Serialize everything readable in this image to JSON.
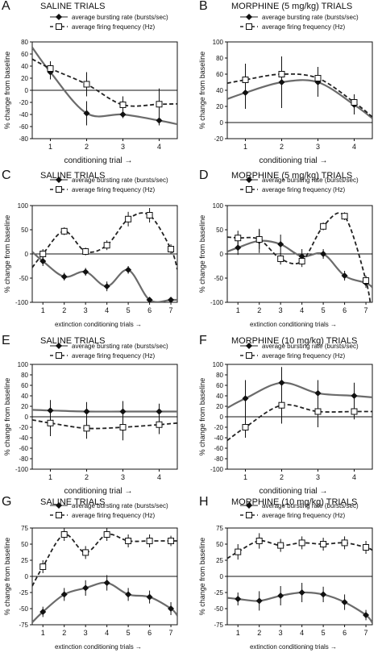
{
  "colors": {
    "bursting": "#6b6b6b",
    "firing": "#222222",
    "axis": "#111111"
  },
  "chart_data": [
    {
      "letter": "A",
      "title": "SALINE TRIALS",
      "type": "line",
      "xlabel": "conditioning trial",
      "ylabel": "% change from baseline",
      "x_ticks": [
        1,
        2,
        3,
        4
      ],
      "xlim": [
        0.5,
        4.5
      ],
      "y_ticks": [
        80,
        60,
        40,
        20,
        0,
        -20,
        -40,
        -60,
        -80
      ],
      "ylim": [
        -80,
        80
      ],
      "legend": [
        "average bursting rate (bursts/sec)",
        "average firing frequency (Hz)"
      ],
      "series": [
        {
          "name": "average bursting rate (bursts/sec)",
          "x": [
            1,
            2,
            3,
            4
          ],
          "values": [
            30,
            -38,
            -40,
            -50
          ],
          "err": [
            12,
            20,
            6,
            8
          ]
        },
        {
          "name": "average firing frequency (Hz)",
          "x": [
            1,
            2,
            3,
            4
          ],
          "values": [
            36,
            10,
            -24,
            -23
          ],
          "err": [
            12,
            20,
            14,
            26
          ]
        }
      ]
    },
    {
      "letter": "B",
      "title": "MORPHINE (5 mg/kg) TRIALS",
      "type": "line",
      "xlabel": "conditioning trial",
      "ylabel": "% change from baseline",
      "x_ticks": [
        1,
        2,
        3,
        4
      ],
      "xlim": [
        0.5,
        4.5
      ],
      "y_ticks": [
        100,
        80,
        60,
        40,
        20,
        0,
        -20
      ],
      "ylim": [
        -20,
        100
      ],
      "legend": [
        "average bursting rate (bursts/sec)",
        "average firing frequency (Hz)"
      ],
      "series": [
        {
          "name": "average bursting rate (bursts/sec)",
          "x": [
            1,
            2,
            3,
            4
          ],
          "values": [
            37,
            50,
            50,
            22
          ],
          "err": [
            20,
            32,
            18,
            12
          ]
        },
        {
          "name": "average firing frequency (Hz)",
          "x": [
            1,
            2,
            3,
            4
          ],
          "values": [
            53,
            60,
            55,
            25
          ],
          "err": [
            20,
            20,
            14,
            10
          ]
        }
      ]
    },
    {
      "letter": "C",
      "title": "SALINE TRIALS",
      "type": "line",
      "xlabel": "extinction conditioning trials",
      "ylabel": "% change from baseline",
      "x_ticks": [
        1,
        2,
        3,
        4,
        5,
        6,
        7
      ],
      "xlim": [
        0.5,
        7.3
      ],
      "y_ticks": [
        100,
        50,
        0,
        -50,
        -100
      ],
      "ylim": [
        -100,
        100
      ],
      "legend": [
        "average bursting rate (bursts/sec)",
        "average firing frequency (Hz)"
      ],
      "series": [
        {
          "name": "average bursting rate (bursts/sec)",
          "x": [
            1,
            2,
            3,
            4,
            5,
            6,
            7
          ],
          "values": [
            -15,
            -47,
            -37,
            -67,
            -33,
            -95,
            -95
          ],
          "err": [
            10,
            8,
            8,
            10,
            8,
            5,
            5
          ]
        },
        {
          "name": "average firing frequency (Hz)",
          "x": [
            1,
            2,
            3,
            4,
            5,
            6,
            7
          ],
          "values": [
            0,
            47,
            5,
            18,
            72,
            80,
            10
          ],
          "err": [
            10,
            8,
            8,
            10,
            15,
            15,
            10
          ]
        }
      ]
    },
    {
      "letter": "D",
      "title": "MORPHINE (5 mg/kg) TRIALS",
      "type": "line",
      "xlabel": "extinction conditioning trials",
      "ylabel": "% change from baseline",
      "x_ticks": [
        1,
        2,
        3,
        4,
        5,
        6,
        7
      ],
      "xlim": [
        0.5,
        7.3
      ],
      "y_ticks": [
        100,
        50,
        0,
        -50,
        -100
      ],
      "ylim": [
        -100,
        100
      ],
      "legend": [
        "average bursting rate (bursts/sec)",
        "average firing frequency (Hz)"
      ],
      "series": [
        {
          "name": "average bursting rate (bursts/sec)",
          "x": [
            1,
            2,
            3,
            4,
            5,
            6,
            7
          ],
          "values": [
            13,
            27,
            20,
            -5,
            0,
            -45,
            -60
          ],
          "err": [
            15,
            25,
            20,
            15,
            10,
            10,
            10
          ]
        },
        {
          "name": "average firing frequency (Hz)",
          "x": [
            1,
            2,
            3,
            4,
            5,
            6,
            7
          ],
          "values": [
            33,
            30,
            -10,
            -15,
            57,
            78,
            -55
          ],
          "err": [
            15,
            20,
            12,
            12,
            8,
            8,
            10
          ]
        }
      ]
    },
    {
      "letter": "E",
      "title": "SALINE TRIALS",
      "type": "line",
      "xlabel": "conditioning trial",
      "ylabel": "% change from baseline",
      "x_ticks": [
        1,
        2,
        3,
        4
      ],
      "xlim": [
        0.5,
        4.5
      ],
      "y_ticks": [
        100,
        80,
        60,
        40,
        20,
        0,
        -20,
        -40,
        -60,
        -80,
        -100
      ],
      "ylim": [
        -100,
        100
      ],
      "legend": [
        "average bursting rate (bursts/sec)",
        "average firing frequency (Hz)"
      ],
      "series": [
        {
          "name": "average bursting rate (bursts/sec)",
          "x": [
            1,
            2,
            3,
            4
          ],
          "values": [
            12,
            10,
            10,
            10
          ],
          "err": [
            20,
            18,
            20,
            15
          ]
        },
        {
          "name": "average firing frequency (Hz)",
          "x": [
            1,
            2,
            3,
            4
          ],
          "values": [
            -12,
            -22,
            -20,
            -15
          ],
          "err": [
            25,
            20,
            25,
            18
          ]
        }
      ]
    },
    {
      "letter": "F",
      "title": "MORPHINE (10 mg/kg) TRIALS",
      "type": "line",
      "xlabel": "conditioning trial",
      "ylabel": "% change from baseline",
      "x_ticks": [
        1,
        2,
        3,
        4
      ],
      "xlim": [
        0.5,
        4.5
      ],
      "y_ticks": [
        100,
        80,
        60,
        40,
        20,
        0,
        -20,
        -40,
        -60,
        -80,
        -100
      ],
      "ylim": [
        -100,
        100
      ],
      "legend": [
        "average bursting rate (bursts/sec)",
        "average firing frequency (Hz)"
      ],
      "series": [
        {
          "name": "average bursting rate (bursts/sec)",
          "x": [
            1,
            2,
            3,
            4
          ],
          "values": [
            35,
            65,
            45,
            40
          ],
          "err": [
            35,
            30,
            25,
            25
          ]
        },
        {
          "name": "average firing frequency (Hz)",
          "x": [
            1,
            2,
            3,
            4
          ],
          "values": [
            -20,
            22,
            10,
            10
          ],
          "err": [
            20,
            35,
            30,
            15
          ]
        }
      ]
    },
    {
      "letter": "G",
      "title": "SALINE TRIALS",
      "type": "line",
      "xlabel": "extinction conditioning trials",
      "ylabel": "% change from baseline",
      "x_ticks": [
        1,
        2,
        3,
        4,
        5,
        6,
        7
      ],
      "xlim": [
        0.5,
        7.3
      ],
      "y_ticks": [
        75,
        50,
        25,
        0,
        -25,
        -50,
        -75
      ],
      "ylim": [
        -75,
        75
      ],
      "legend": [
        "average bursting rate (bursts/sec)",
        "average firing frequency (Hz)"
      ],
      "series": [
        {
          "name": "average bursting rate (bursts/sec)",
          "x": [
            1,
            2,
            3,
            4,
            5,
            6,
            7
          ],
          "values": [
            -55,
            -28,
            -18,
            -10,
            -28,
            -32,
            -50
          ],
          "err": [
            8,
            10,
            12,
            12,
            10,
            10,
            10
          ]
        },
        {
          "name": "average firing frequency (Hz)",
          "x": [
            1,
            2,
            3,
            4,
            5,
            6,
            7
          ],
          "values": [
            15,
            65,
            37,
            65,
            55,
            55,
            55
          ],
          "err": [
            10,
            10,
            10,
            10,
            10,
            10,
            8
          ]
        }
      ]
    },
    {
      "letter": "H",
      "title": "MORPHINE (10 mg/kg) TRIALS",
      "type": "line",
      "xlabel": "extinction conditioning trials",
      "ylabel": "% change from baseline",
      "x_ticks": [
        1,
        2,
        3,
        4,
        5,
        6,
        7
      ],
      "xlim": [
        0.5,
        7.3
      ],
      "y_ticks": [
        75,
        50,
        25,
        0,
        -25,
        -50,
        -75
      ],
      "ylim": [
        -75,
        75
      ],
      "legend": [
        "average bursting rate (bursts/sec)",
        "average firing frequency (Hz)"
      ],
      "series": [
        {
          "name": "average bursting rate (bursts/sec)",
          "x": [
            1,
            2,
            3,
            4,
            5,
            6,
            7
          ],
          "values": [
            -35,
            -38,
            -30,
            -25,
            -28,
            -40,
            -60
          ],
          "err": [
            10,
            15,
            15,
            15,
            12,
            12,
            8
          ]
        },
        {
          "name": "average firing frequency (Hz)",
          "x": [
            1,
            2,
            3,
            4,
            5,
            6,
            7
          ],
          "values": [
            38,
            55,
            48,
            52,
            50,
            52,
            45
          ],
          "err": [
            12,
            12,
            10,
            10,
            10,
            10,
            10
          ]
        }
      ]
    }
  ]
}
